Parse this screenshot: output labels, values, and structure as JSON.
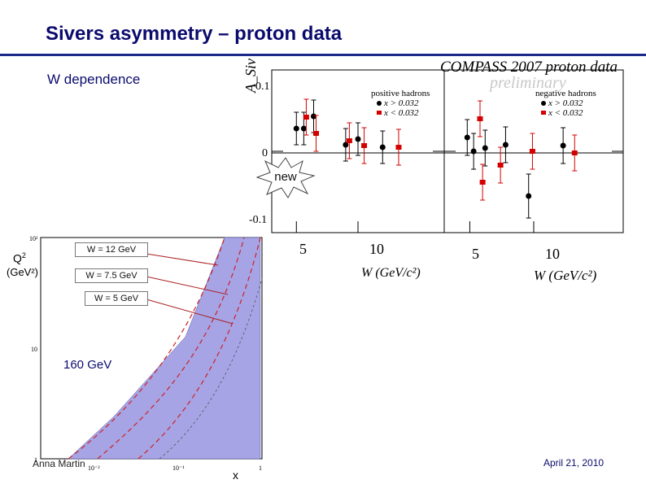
{
  "slide": {
    "title": "Sivers asymmetry – proton data",
    "subtitle": "W dependence",
    "new_label": "new",
    "author": "Anna Martin",
    "date": "April 21, 2010",
    "beam_label": "160 GeV",
    "colors": {
      "title": "#0b0b6e",
      "rule": "#1a2a8a",
      "band": "#a7a4e6",
      "red": "#d40000"
    }
  },
  "chart_data": [
    {
      "type": "scatter",
      "title": "COMPASS 2007 proton data",
      "watermark": "preliminary",
      "ylabel": "A_Siv^p",
      "xlabel": "W (GeV/c²)",
      "ylim": [
        -0.1,
        0.1
      ],
      "yticks": [
        "0.1",
        "0",
        "-0.1"
      ],
      "xticks": [
        "5",
        "10"
      ],
      "panels": [
        {
          "name": "positive hadrons",
          "xlim": [
            3,
            17
          ],
          "series": [
            {
              "name": "x > 0.032",
              "color": "#000000",
              "points": [
                {
                  "x": 5.0,
                  "y": 0.028,
                  "err": 0.02
                },
                {
                  "x": 5.6,
                  "y": 0.028,
                  "err": 0.02
                },
                {
                  "x": 6.4,
                  "y": 0.043,
                  "err": 0.02
                },
                {
                  "x": 9.0,
                  "y": 0.008,
                  "err": 0.02
                },
                {
                  "x": 10.0,
                  "y": 0.015,
                  "err": 0.02
                },
                {
                  "x": 12.0,
                  "y": 0.005,
                  "err": 0.02
                }
              ]
            },
            {
              "name": "x < 0.032",
              "color": "#d40000",
              "points": [
                {
                  "x": 5.8,
                  "y": 0.042,
                  "err": 0.022
                },
                {
                  "x": 6.6,
                  "y": 0.022,
                  "err": 0.022
                },
                {
                  "x": 9.3,
                  "y": 0.013,
                  "err": 0.022
                },
                {
                  "x": 10.5,
                  "y": 0.007,
                  "err": 0.022
                },
                {
                  "x": 13.3,
                  "y": 0.005,
                  "err": 0.022
                }
              ]
            }
          ]
        },
        {
          "name": "negative hadrons",
          "xlim": [
            3,
            17
          ],
          "series": [
            {
              "name": "x > 0.032",
              "color": "#000000",
              "points": [
                {
                  "x": 4.8,
                  "y": 0.017,
                  "err": 0.022
                },
                {
                  "x": 5.3,
                  "y": 0.0,
                  "err": 0.022
                },
                {
                  "x": 6.2,
                  "y": 0.004,
                  "err": 0.022
                },
                {
                  "x": 7.8,
                  "y": 0.008,
                  "err": 0.022
                },
                {
                  "x": 9.6,
                  "y": -0.055,
                  "err": 0.027
                },
                {
                  "x": 12.3,
                  "y": 0.007,
                  "err": 0.022
                }
              ]
            },
            {
              "name": "x < 0.032",
              "color": "#d40000",
              "points": [
                {
                  "x": 5.8,
                  "y": 0.04,
                  "err": 0.022
                },
                {
                  "x": 6.0,
                  "y": -0.038,
                  "err": 0.022
                },
                {
                  "x": 7.4,
                  "y": -0.017,
                  "err": 0.022
                },
                {
                  "x": 9.9,
                  "y": 0.0,
                  "err": 0.022
                },
                {
                  "x": 13.2,
                  "y": -0.002,
                  "err": 0.022
                }
              ]
            }
          ]
        }
      ]
    },
    {
      "type": "area",
      "xlabel": "x",
      "ylabel": "Q²",
      "ylabel_unit": "(GeV²)",
      "xscale": "log",
      "yscale": "log",
      "xlim": [
        0.003,
        1
      ],
      "ylim": [
        1,
        100
      ],
      "xticks": [
        "10⁻²",
        "10⁻¹",
        "1"
      ],
      "yticks": [
        "10²",
        "10",
        "1"
      ],
      "band_color": "#a7a4e6",
      "w_lines": [
        "W = 12 GeV",
        "W = 7.5 GeV",
        "W = 5 GeV"
      ]
    }
  ]
}
